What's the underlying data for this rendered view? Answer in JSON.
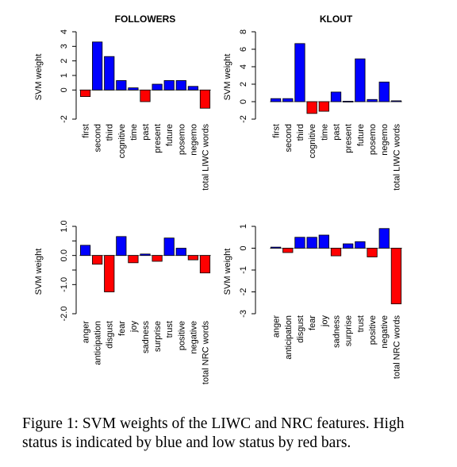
{
  "chart_data": [
    {
      "type": "bar",
      "title": "FOLLOWERS",
      "ylabel": "SVM weight",
      "xlabel": "",
      "ylim": [
        -2,
        4
      ],
      "yticks": [
        -2,
        0,
        1,
        2,
        3,
        4
      ],
      "categories": [
        "first",
        "second",
        "third",
        "cognitive",
        "time",
        "past",
        "present",
        "future",
        "posemo",
        "negemo",
        "total LIWC words"
      ],
      "values": [
        -0.45,
        3.3,
        2.3,
        0.65,
        0.15,
        -0.8,
        0.4,
        0.65,
        0.65,
        0.25,
        -1.25
      ],
      "grid": false
    },
    {
      "type": "bar",
      "title": "KLOUT",
      "ylabel": "SVM weight",
      "xlabel": "",
      "ylim": [
        -2,
        8
      ],
      "yticks": [
        -2,
        0,
        2,
        4,
        6,
        8
      ],
      "categories": [
        "first",
        "second",
        "third",
        "cognitive",
        "time",
        "past",
        "present",
        "future",
        "posemo",
        "negemo",
        "total LIWC words"
      ],
      "values": [
        0.35,
        0.35,
        6.65,
        -1.35,
        -1.1,
        1.1,
        0.05,
        4.9,
        0.25,
        2.25,
        0.1
      ],
      "grid": false
    },
    {
      "type": "bar",
      "title": "",
      "ylabel": "SVM weight",
      "xlabel": "",
      "ylim": [
        -2,
        1
      ],
      "yticks": [
        -2.0,
        -1.0,
        -0.5,
        0.0,
        0.5,
        1.0
      ],
      "ytick_labels": [
        "-2.0",
        "-1.0",
        "",
        "0.0",
        "",
        "1.0"
      ],
      "categories": [
        "anger",
        "anticipation",
        "disgust",
        "fear",
        "joy",
        "sadness",
        "surprise",
        "trust",
        "positive",
        "negative",
        "total NRC words"
      ],
      "values": [
        0.35,
        -0.3,
        -1.25,
        0.65,
        -0.25,
        0.05,
        -0.2,
        0.6,
        0.25,
        -0.15,
        -0.6
      ],
      "grid": false
    },
    {
      "type": "bar",
      "title": "",
      "ylabel": "SVM weight",
      "xlabel": "",
      "ylim": [
        -3,
        1
      ],
      "yticks": [
        -3,
        -2,
        -1,
        0,
        1
      ],
      "categories": [
        "anger",
        "anticipation",
        "disgust",
        "fear",
        "joy",
        "sadness",
        "surprise",
        "trust",
        "positive",
        "negative",
        "total NRC words"
      ],
      "values": [
        0.05,
        -0.2,
        0.5,
        0.5,
        0.6,
        -0.35,
        0.2,
        0.3,
        -0.4,
        0.9,
        -2.55
      ],
      "grid": false
    }
  ],
  "colors": {
    "positive_bar": "#0000ff",
    "negative_bar": "#ff0000",
    "outline": "#000000"
  },
  "caption": "Figure 1: SVM weights of the LIWC and NRC features. High status is indicated by blue and low status by red bars."
}
